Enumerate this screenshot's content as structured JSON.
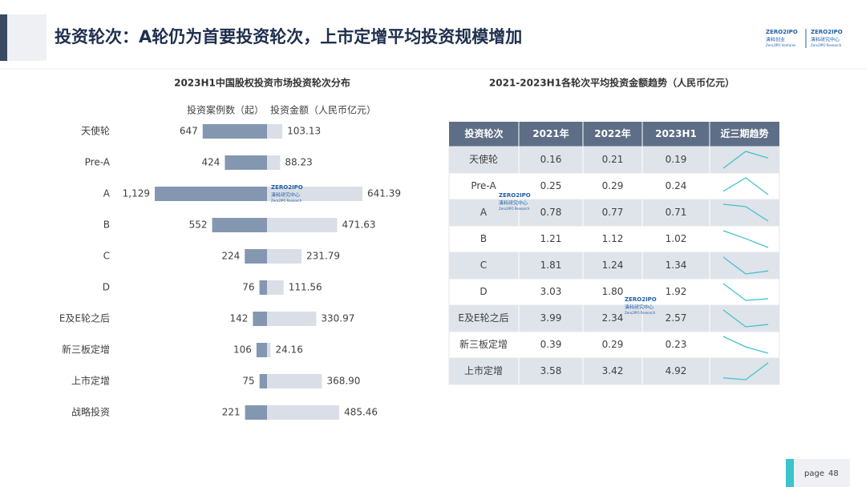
{
  "header": {
    "title": "投资轮次：A轮仍为首要投资轮次，上市定增平均投资规模增加"
  },
  "logos": [
    {
      "brand": "ZERO2IPO",
      "name": "清科创业",
      "en": "Zero2IPO Ventures"
    },
    {
      "brand": "ZERO2IPO",
      "name": "清科研究中心",
      "en": "Zero2IPO Research"
    }
  ],
  "watermark": {
    "brand": "ZERO2IPO",
    "name": "清科研究中心",
    "en": "Zero2IPO Research"
  },
  "footer": {
    "page_word": "page",
    "page_number": 48
  },
  "chart_data": [
    {
      "type": "butterfly-bar",
      "title": "2023H1中国股权投资市场投资轮次分布",
      "categories": [
        "天使轮",
        "Pre-A",
        "A",
        "B",
        "C",
        "D",
        "E及E轮之后",
        "新三板定增",
        "上市定增",
        "战略投资"
      ],
      "series": [
        {
          "name": "投资案例数（起）",
          "color": "#8497b0",
          "values": [
            647,
            424,
            1129,
            552,
            224,
            76,
            142,
            106,
            75,
            221
          ],
          "value_labels": [
            "647",
            "424",
            "1,129",
            "552",
            "224",
            "76",
            "142",
            "106",
            "75",
            "221"
          ]
        },
        {
          "name": "投资金额（人民币亿元）",
          "color": "#dadee6",
          "values": [
            103.13,
            88.23,
            641.39,
            471.63,
            231.79,
            111.56,
            330.97,
            24.16,
            368.9,
            485.46
          ],
          "value_labels": [
            "103.13",
            "88.23",
            "641.39",
            "471.63",
            "231.79",
            "111.56",
            "330.97",
            "24.16",
            "368.90",
            "485.46"
          ]
        }
      ]
    },
    {
      "type": "table",
      "title": "2021-2023H1各轮次平均投资金额趋势（人民币亿元）",
      "columns": [
        "投资轮次",
        "2021年",
        "2022年",
        "2023H1",
        "近三期趋势"
      ],
      "line_color": "#45c1c9",
      "rows": [
        {
          "name": "天使轮",
          "values": [
            0.16,
            0.21,
            0.19
          ]
        },
        {
          "name": "Pre-A",
          "values": [
            0.25,
            0.29,
            0.24
          ]
        },
        {
          "name": "A",
          "values": [
            0.78,
            0.77,
            0.71
          ]
        },
        {
          "name": "B",
          "values": [
            1.21,
            1.12,
            1.02
          ]
        },
        {
          "name": "C",
          "values": [
            1.81,
            1.24,
            1.34
          ]
        },
        {
          "name": "D",
          "values": [
            3.03,
            1.8,
            1.92
          ],
          "value_labels": [
            "3.03",
            "1.80",
            "1.92"
          ]
        },
        {
          "name": "E及E轮之后",
          "values": [
            3.99,
            2.34,
            2.57
          ]
        },
        {
          "name": "新三板定增",
          "values": [
            0.39,
            0.29,
            0.23
          ]
        },
        {
          "name": "上市定增",
          "values": [
            3.58,
            3.42,
            4.92
          ]
        }
      ]
    }
  ]
}
